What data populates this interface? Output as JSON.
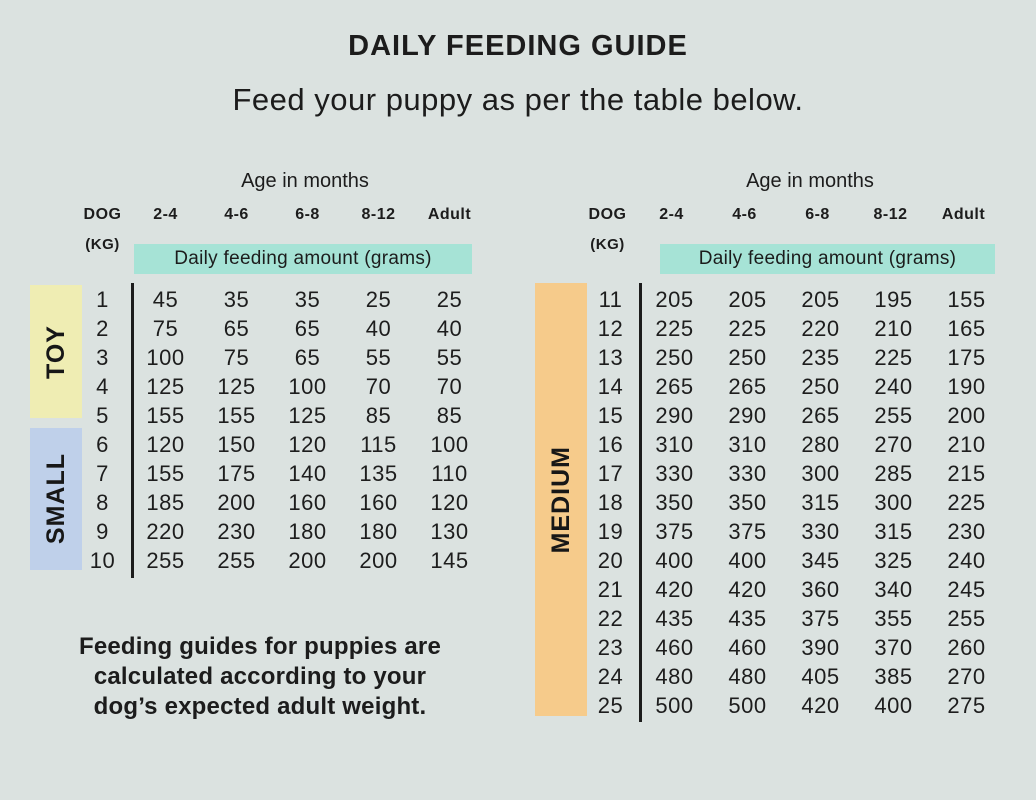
{
  "page": {
    "title": "DAILY FEEDING GUIDE",
    "subtitle": "Feed your puppy as per the table below.",
    "footer_lines": [
      "Feeding guides for puppies are",
      "calculated according to your",
      "dog’s expected adult weight."
    ]
  },
  "colors": {
    "background": "#dbe2e0",
    "amount_highlight_teal": "#a6e3d6",
    "toy_band_yellow": "#efedb3",
    "small_band_blue": "#bfd0ea",
    "medium_band_orange": "#f6cb8b",
    "text_ink": "#1c1c1c"
  },
  "chart_data": [
    {
      "type": "table",
      "title": "Age in months",
      "row_header": {
        "line1": "DOG",
        "line2": "(KG)"
      },
      "columns": [
        "2-4",
        "4-6",
        "6-8",
        "8-12",
        "Adult"
      ],
      "col_group_label": "Daily feeding amount (grams)",
      "size_groups": [
        {
          "label": "TOY",
          "color": "#efedb3",
          "rows": [
            {
              "kg": "1",
              "grams": [
                "45",
                "35",
                "35",
                "25",
                "25"
              ]
            },
            {
              "kg": "2",
              "grams": [
                "75",
                "65",
                "65",
                "40",
                "40"
              ]
            },
            {
              "kg": "3",
              "grams": [
                "100",
                "75",
                "65",
                "55",
                "55"
              ]
            },
            {
              "kg": "4",
              "grams": [
                "125",
                "125",
                "100",
                "70",
                "70"
              ]
            },
            {
              "kg": "5",
              "grams": [
                "155",
                "155",
                "125",
                "85",
                "85"
              ]
            }
          ]
        },
        {
          "label": "SMALL",
          "color": "#bfd0ea",
          "rows": [
            {
              "kg": "6",
              "grams": [
                "120",
                "150",
                "120",
                "115",
                "100"
              ]
            },
            {
              "kg": "7",
              "grams": [
                "155",
                "175",
                "140",
                "135",
                "110"
              ]
            },
            {
              "kg": "8",
              "grams": [
                "185",
                "200",
                "160",
                "160",
                "120"
              ]
            },
            {
              "kg": "9",
              "grams": [
                "220",
                "230",
                "180",
                "180",
                "130"
              ]
            },
            {
              "kg": "10",
              "grams": [
                "255",
                "255",
                "200",
                "200",
                "145"
              ]
            }
          ]
        }
      ]
    },
    {
      "type": "table",
      "title": "Age in months",
      "row_header": {
        "line1": "DOG",
        "line2": "(KG)"
      },
      "columns": [
        "2-4",
        "4-6",
        "6-8",
        "8-12",
        "Adult"
      ],
      "col_group_label": "Daily feeding amount (grams)",
      "size_groups": [
        {
          "label": "MEDIUM",
          "color": "#f6cb8b",
          "rows": [
            {
              "kg": "11",
              "grams": [
                "205",
                "205",
                "205",
                "195",
                "155"
              ]
            },
            {
              "kg": "12",
              "grams": [
                "225",
                "225",
                "220",
                "210",
                "165"
              ]
            },
            {
              "kg": "13",
              "grams": [
                "250",
                "250",
                "235",
                "225",
                "175"
              ]
            },
            {
              "kg": "14",
              "grams": [
                "265",
                "265",
                "250",
                "240",
                "190"
              ]
            },
            {
              "kg": "15",
              "grams": [
                "290",
                "290",
                "265",
                "255",
                "200"
              ]
            },
            {
              "kg": "16",
              "grams": [
                "310",
                "310",
                "280",
                "270",
                "210"
              ]
            },
            {
              "kg": "17",
              "grams": [
                "330",
                "330",
                "300",
                "285",
                "215"
              ]
            },
            {
              "kg": "18",
              "grams": [
                "350",
                "350",
                "315",
                "300",
                "225"
              ]
            },
            {
              "kg": "19",
              "grams": [
                "375",
                "375",
                "330",
                "315",
                "230"
              ]
            },
            {
              "kg": "20",
              "grams": [
                "400",
                "400",
                "345",
                "325",
                "240"
              ]
            },
            {
              "kg": "21",
              "grams": [
                "420",
                "420",
                "360",
                "340",
                "245"
              ]
            },
            {
              "kg": "22",
              "grams": [
                "435",
                "435",
                "375",
                "355",
                "255"
              ]
            },
            {
              "kg": "23",
              "grams": [
                "460",
                "460",
                "390",
                "370",
                "260"
              ]
            },
            {
              "kg": "24",
              "grams": [
                "480",
                "480",
                "405",
                "385",
                "270"
              ]
            },
            {
              "kg": "25",
              "grams": [
                "500",
                "500",
                "420",
                "400",
                "275"
              ]
            }
          ]
        }
      ]
    }
  ]
}
